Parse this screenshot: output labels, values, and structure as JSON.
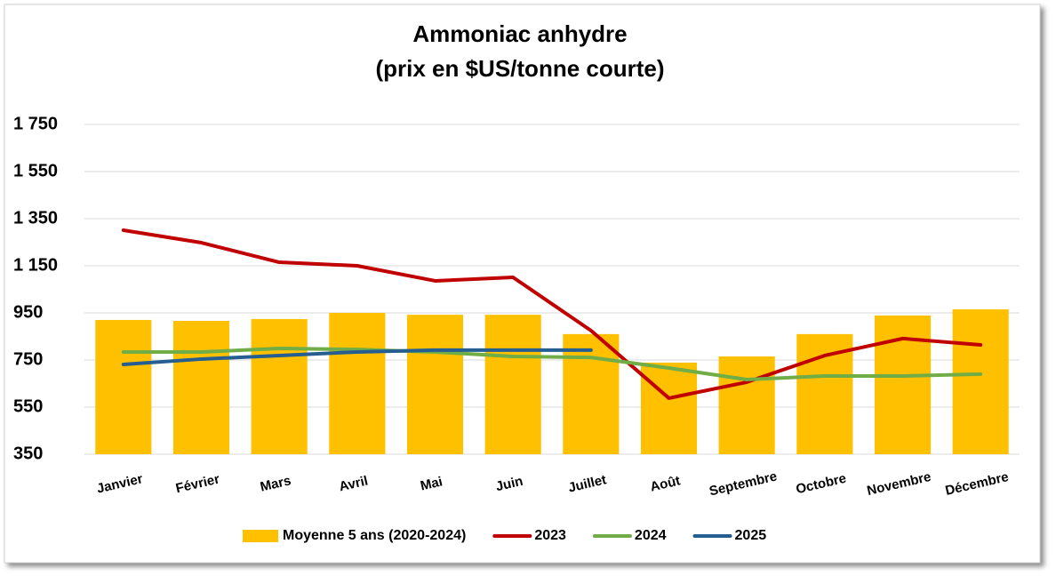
{
  "chart_data": {
    "type": "bar",
    "title": [
      "Ammoniac anhydre",
      "(prix en $US/tonne courte)"
    ],
    "categories": [
      "Janvier",
      "Février",
      "Mars",
      "Avril",
      "Mai",
      "Juin",
      "Juillet",
      "Août",
      "Septembre",
      "Octobre",
      "Novembre",
      "Décembre"
    ],
    "series": [
      {
        "name": "Moyenne 5 ans (2020-2024)",
        "type": "bar",
        "color": "#ffc000",
        "values": [
          920,
          916,
          924,
          950,
          942,
          942,
          860,
          739,
          765,
          860,
          939,
          965
        ]
      },
      {
        "name": "2023",
        "type": "line",
        "color": "#c00000",
        "values": [
          1301,
          1248,
          1165,
          1150,
          1086,
          1101,
          875,
          588,
          656,
          769,
          841,
          814
        ]
      },
      {
        "name": "2024",
        "type": "line",
        "color": "#70ad47",
        "values": [
          784,
          784,
          799,
          795,
          784,
          765,
          761,
          716,
          667,
          682,
          682,
          690
        ]
      },
      {
        "name": "2025",
        "type": "line",
        "color": "#255e91",
        "values": [
          731,
          754,
          769,
          784,
          792,
          792,
          792,
          null,
          null,
          null,
          null,
          null
        ]
      }
    ],
    "ylim": [
      350,
      1750
    ],
    "yticks": [
      350,
      550,
      750,
      950,
      {
        "value": 1150,
        "label": "1 150"
      },
      {
        "value": 1350,
        "label": "1 350"
      },
      {
        "value": 1550,
        "label": "1 550"
      },
      {
        "value": 1750,
        "label": "1 750"
      }
    ],
    "grid": true,
    "legend": "bottom"
  }
}
